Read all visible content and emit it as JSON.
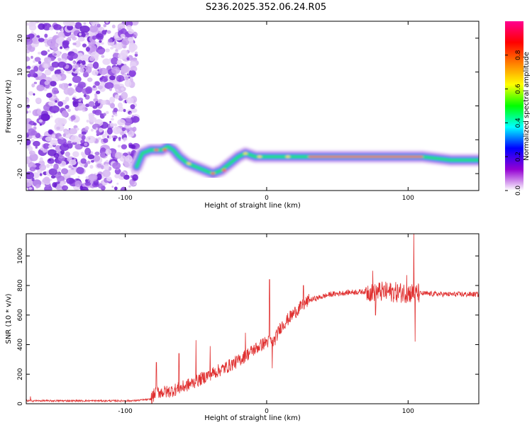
{
  "title": "S236.2025.352.06.24.R05",
  "chart_data": [
    {
      "type": "heatmap",
      "name": "spectrogram",
      "xlabel": "Height of straight line (km)",
      "ylabel": "Frequency (Hz)",
      "xlim": [
        -170,
        150
      ],
      "ylim": [
        -25,
        25
      ],
      "xticks": [
        -100,
        0,
        100
      ],
      "xtick_labels": [
        "-100",
        "0",
        "100"
      ],
      "yticks": [
        20,
        10,
        0,
        -10,
        -20
      ],
      "ytick_labels": [
        "20",
        "10",
        "0",
        "-10",
        "-20"
      ],
      "noise_region": {
        "x_from": -170,
        "x_to": -92,
        "description": "scattered low-amplitude purple speckles"
      },
      "ridge": [
        {
          "x": -92,
          "f": -18
        },
        {
          "x": -88,
          "f": -14
        },
        {
          "x": -82,
          "f": -13
        },
        {
          "x": -78,
          "f": -13
        },
        {
          "x": -74,
          "f": -13
        },
        {
          "x": -70,
          "f": -12
        },
        {
          "x": -66,
          "f": -13
        },
        {
          "x": -62,
          "f": -15
        },
        {
          "x": -56,
          "f": -17
        },
        {
          "x": -50,
          "f": -18
        },
        {
          "x": -44,
          "f": -19
        },
        {
          "x": -38,
          "f": -20
        },
        {
          "x": -32,
          "f": -19
        },
        {
          "x": -26,
          "f": -17
        },
        {
          "x": -20,
          "f": -15
        },
        {
          "x": -15,
          "f": -14
        },
        {
          "x": -8,
          "f": -15
        },
        {
          "x": 0,
          "f": -15
        },
        {
          "x": 10,
          "f": -15
        },
        {
          "x": 30,
          "f": -15
        },
        {
          "x": 60,
          "f": -15
        },
        {
          "x": 90,
          "f": -15
        },
        {
          "x": 110,
          "f": -15
        },
        {
          "x": 130,
          "f": -16
        },
        {
          "x": 150,
          "f": -16
        }
      ],
      "colorbar": {
        "label": "Normalized spectral amplitude",
        "range": [
          0.0,
          1.0
        ],
        "ticks": [
          0.0,
          0.2,
          0.4,
          0.6,
          0.8
        ],
        "tick_labels": [
          "0.0",
          "0.2",
          "0.4",
          "0.6",
          "0.8"
        ],
        "colormap": [
          "#ffffff",
          "#9400d3",
          "#0000ff",
          "#00ffff",
          "#00ff00",
          "#ffff00",
          "#ff8000",
          "#ff0000",
          "#ff0090"
        ]
      }
    },
    {
      "type": "line",
      "name": "snr",
      "xlabel": "Height of straight line (km)",
      "ylabel": "SNR (10 * v/v)",
      "xlim": [
        -170,
        150
      ],
      "ylim": [
        0,
        1150
      ],
      "xticks": [
        -100,
        0,
        100
      ],
      "xtick_labels": [
        "-100",
        "0",
        "100"
      ],
      "yticks": [
        0,
        200,
        400,
        600,
        800,
        1000
      ],
      "ytick_labels": [
        "0",
        "200",
        "400",
        "600",
        "800",
        "1000"
      ],
      "line_color": "#e03030",
      "baseline": [
        {
          "x": -170,
          "y": 20
        },
        {
          "x": -130,
          "y": 20
        },
        {
          "x": -95,
          "y": 20
        },
        {
          "x": -82,
          "y": 30
        },
        {
          "x": -78,
          "y": 80
        },
        {
          "x": -70,
          "y": 80
        },
        {
          "x": -60,
          "y": 110
        },
        {
          "x": -50,
          "y": 150
        },
        {
          "x": -40,
          "y": 200
        },
        {
          "x": -30,
          "y": 240
        },
        {
          "x": -20,
          "y": 290
        },
        {
          "x": -10,
          "y": 360
        },
        {
          "x": 0,
          "y": 420
        },
        {
          "x": 5,
          "y": 420
        },
        {
          "x": 10,
          "y": 520
        },
        {
          "x": 20,
          "y": 620
        },
        {
          "x": 30,
          "y": 700
        },
        {
          "x": 45,
          "y": 740
        },
        {
          "x": 60,
          "y": 755
        },
        {
          "x": 75,
          "y": 760
        },
        {
          "x": 90,
          "y": 755
        },
        {
          "x": 110,
          "y": 745
        },
        {
          "x": 130,
          "y": 740
        },
        {
          "x": 150,
          "y": 740
        }
      ],
      "spikes": [
        {
          "x": -167,
          "y": 50
        },
        {
          "x": -78,
          "y": 280
        },
        {
          "x": -62,
          "y": 340
        },
        {
          "x": -50,
          "y": 430
        },
        {
          "x": -40,
          "y": 390
        },
        {
          "x": -15,
          "y": 480
        },
        {
          "x": 2,
          "y": 840
        },
        {
          "x": 4,
          "y": 240
        },
        {
          "x": 26,
          "y": 800
        },
        {
          "x": 75,
          "y": 900
        },
        {
          "x": 77,
          "y": 600
        },
        {
          "x": 99,
          "y": 870
        },
        {
          "x": 104,
          "y": 1150
        },
        {
          "x": 105,
          "y": 420
        }
      ]
    }
  ]
}
